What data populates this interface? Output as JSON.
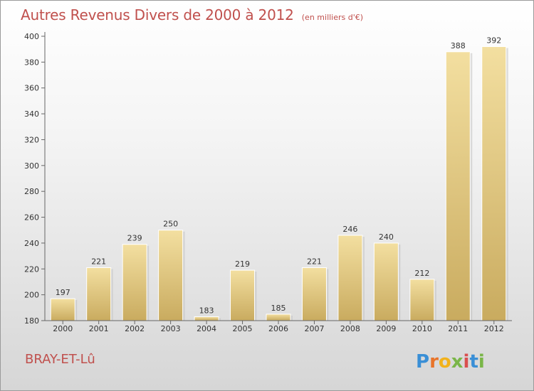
{
  "header": {
    "title": "Autres Revenus Divers de 2000 à 2012",
    "subtitle": "(en milliers d'€)"
  },
  "footer": {
    "commune": "BRAY-ET-Lû",
    "logo_text": "Proxiti"
  },
  "colors": {
    "title": "#c0504d",
    "bar_light": "#f3dfa0",
    "bar_dark": "#c9ab5f",
    "axis": "#555555"
  },
  "chart_data": {
    "type": "bar",
    "categories": [
      "2000",
      "2001",
      "2002",
      "2003",
      "2004",
      "2005",
      "2006",
      "2007",
      "2008",
      "2009",
      "2010",
      "2011",
      "2012"
    ],
    "values": [
      197,
      221,
      239,
      250,
      183,
      219,
      185,
      221,
      246,
      240,
      212,
      388,
      392
    ],
    "data_labels": [
      "197",
      "221",
      "239",
      "250",
      "183",
      "219",
      "185",
      "221",
      "246",
      "240",
      "212",
      "388",
      "392"
    ],
    "ylim": [
      180,
      400
    ],
    "yticks": [
      180,
      200,
      220,
      240,
      260,
      280,
      300,
      320,
      340,
      360,
      380,
      400
    ],
    "ytick_labels": [
      "180",
      "200",
      "220",
      "240",
      "260",
      "280",
      "300",
      "320",
      "340",
      "360",
      "380",
      "400"
    ],
    "grid": false,
    "legend": "none"
  }
}
